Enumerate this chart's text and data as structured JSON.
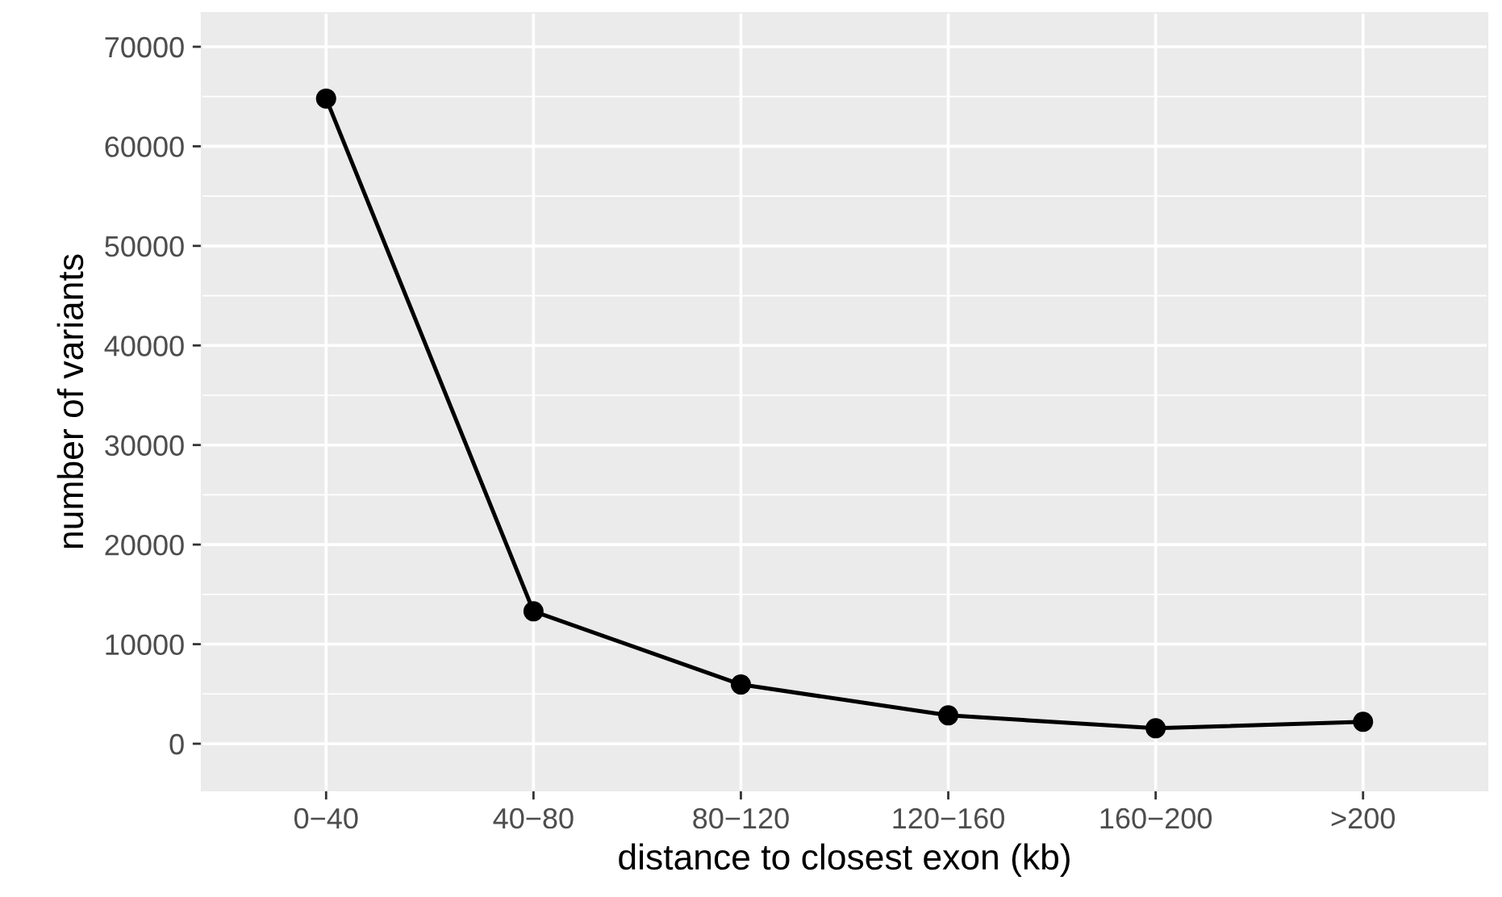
{
  "chart_data": {
    "type": "line",
    "xlabel": "distance to closest exon (kb)",
    "ylabel": "number of variants",
    "categories": [
      "0−40",
      "40−80",
      "80−120",
      "120−160",
      "160−200",
      ">200"
    ],
    "series": [
      {
        "color": "#000000",
        "values": [
          64800,
          13300,
          5950,
          2850,
          1550,
          2200
        ]
      }
    ],
    "ylim": [
      -4700,
      73400
    ],
    "yticks": [
      0,
      10000,
      20000,
      30000,
      40000,
      50000,
      60000,
      70000
    ],
    "grid": true,
    "marker": "circle",
    "line_style": "solid",
    "legend": false
  }
}
